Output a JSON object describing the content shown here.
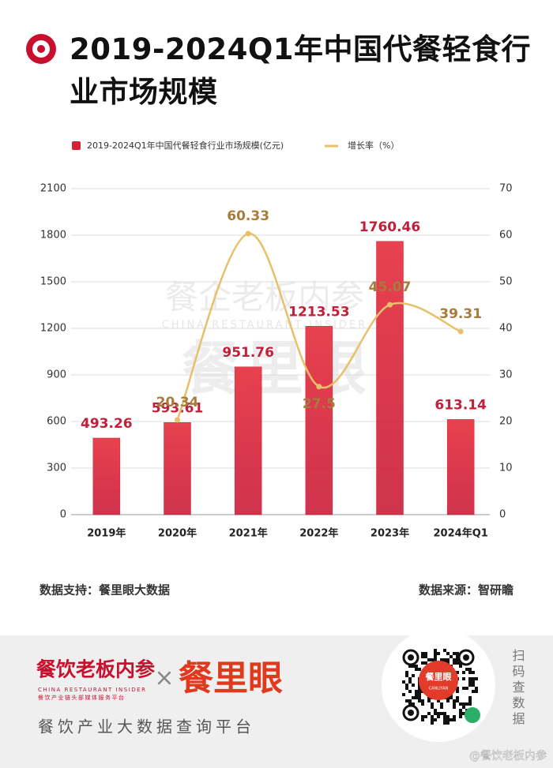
{
  "title": "2019-2024Q1年中国代餐轻食行业市场规模",
  "chart_data": {
    "type": "bar",
    "categories": [
      "2019年",
      "2020年",
      "2021年",
      "2022年",
      "2023年",
      "2024年Q1"
    ],
    "series": [
      {
        "name": "2019-2024Q1年中国代餐轻食行业市场规模(亿元)",
        "type": "bar",
        "color": "#d81e32",
        "values": [
          493.26,
          593.61,
          951.76,
          1213.53,
          1760.46,
          613.14
        ]
      },
      {
        "name": "增长率（%）",
        "type": "line",
        "axis": "y2",
        "color": "#e8c06a",
        "values": [
          null,
          20.34,
          60.33,
          27.5,
          45.07,
          39.31
        ]
      }
    ],
    "ylim": [
      0,
      2100
    ],
    "yticks": [
      0,
      300,
      600,
      900,
      1200,
      1500,
      1800,
      2100
    ],
    "y2lim": [
      0,
      70
    ],
    "y2ticks": [
      0,
      10,
      20,
      30,
      40,
      50,
      60,
      70
    ],
    "grid": true
  },
  "watermark": {
    "main": "餐企老板内参",
    "sub": "CHINA RESTAURANT INSIDER",
    "brand": "餐里眼"
  },
  "notes": {
    "support": "数据支持：餐里眼大数据",
    "source": "数据来源：智研瞻"
  },
  "footer": {
    "brand1": "餐饮老板内参",
    "brand1_en": "CHINA RESTAURANT INSIDER",
    "brand1_slogan": "餐饮产业链头部媒体服务平台",
    "times": "×",
    "brand2": "餐里眼",
    "platform": "餐饮产业大数据查询平台",
    "qr_brand": "餐里眼",
    "qr_brand_en": "CANLIYAN",
    "scan": "扫码查数据",
    "weibo": "@餐饮老板内参"
  }
}
